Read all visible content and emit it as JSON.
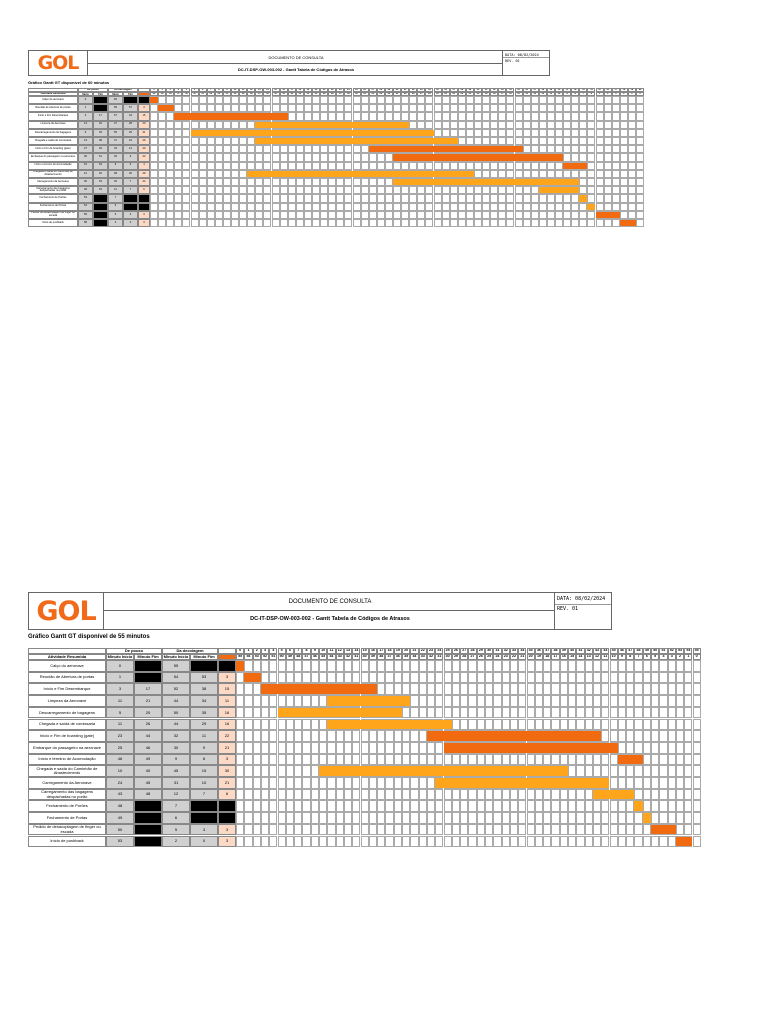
{
  "header": {
    "logo": "GOL",
    "doc_label": "DOCUMENTO DE CONSULTA",
    "doc_title": "DC-IT-DSP-OW-003-002 - Gantt Tabela de Códigos de Atrasos",
    "date": "DATA: 08/02/2024",
    "rev": "REV. 01"
  },
  "sheets": [
    {
      "title": "Gráfico Gantt GT disponível de 60 minutos",
      "total": 60,
      "rows": [
        {
          "activity": "Calço do aeronave",
          "pi": "0",
          "pf": "",
          "ci": "60",
          "cf": "",
          "d": ""
        },
        {
          "activity": "Reunião de Abertura de portas",
          "pi": "1",
          "pf": "",
          "ci": "59",
          "cf": "57",
          "d": "3"
        },
        {
          "activity": "Início e Fim Desembarque",
          "pi": "3",
          "pf": "17",
          "ci": "57",
          "cf": "43",
          "d": "15"
        },
        {
          "activity": "Limpeza da Aeronave",
          "pi": "13",
          "pf": "32",
          "ci": "47",
          "cf": "28",
          "d": "20"
        },
        {
          "activity": "Descarregamento de bagagens",
          "pi": "5",
          "pf": "35",
          "ci": "55",
          "cf": "25",
          "d": "31"
        },
        {
          "activity": "Chegada e saída de comissaria",
          "pi": "13",
          "pf": "38",
          "ci": "47",
          "cf": "22",
          "d": "26"
        },
        {
          "activity": "Início e Fim de boarding (gate)",
          "pi": "27",
          "pf": "46",
          "ci": "33",
          "cf": "14",
          "d": "20"
        },
        {
          "activity": "Embarque do passageiro na aeronave",
          "pi": "30",
          "pf": "51",
          "ci": "30",
          "cf": "9",
          "d": "22"
        },
        {
          "activity": "Início e término de Acomodação",
          "pi": "51",
          "pf": "54",
          "ci": "9",
          "cf": "6",
          "d": "4"
        },
        {
          "activity": "Chegada e saída do Caminhão de Abastecimento",
          "pi": "12",
          "pf": "40",
          "ci": "48",
          "cf": "20",
          "d": "29"
        },
        {
          "activity": "Carregamento da Aeronave",
          "pi": "30",
          "pf": "53",
          "ci": "30",
          "cf": "7",
          "d": "24"
        },
        {
          "activity": "Carregamento das bagagens despachadas no porão",
          "pi": "48",
          "pf": "53",
          "ci": "12",
          "cf": "7",
          "d": "6"
        },
        {
          "activity": "Fechamento de Porões",
          "pi": "53",
          "pf": "",
          "ci": "7",
          "cf": "",
          "d": ""
        },
        {
          "activity": "Fechamento de Portas",
          "pi": "54",
          "pf": "",
          "ci": "6",
          "cf": "",
          "d": ""
        },
        {
          "activity": "Pedido de desacoplagem de finger ou escada",
          "pi": "55",
          "pf": "",
          "ci": "5",
          "cf": "3",
          "d": "3"
        },
        {
          "activity": "Início de pushback",
          "pi": "58",
          "pf": "",
          "ci": "2",
          "cf": "0",
          "d": "3"
        }
      ],
      "bars": [
        [
          0,
          1,
          "dark"
        ],
        [
          1,
          3,
          "dark"
        ],
        [
          3,
          17,
          "dark"
        ],
        [
          13,
          32,
          "light"
        ],
        [
          5,
          35,
          "light"
        ],
        [
          13,
          38,
          "light"
        ],
        [
          27,
          46,
          "dark"
        ],
        [
          30,
          51,
          "dark"
        ],
        [
          51,
          54,
          "dark"
        ],
        [
          12,
          40,
          "light"
        ],
        [
          30,
          53,
          "light"
        ],
        [
          48,
          53,
          "light"
        ],
        [
          53,
          54,
          "light"
        ],
        [
          54,
          55,
          "light"
        ],
        [
          55,
          58,
          "dark"
        ],
        [
          58,
          60,
          "dark"
        ]
      ]
    },
    {
      "title": "Gráfico Gantt GT disponível de 55 minutos",
      "total": 55,
      "rows": [
        {
          "activity": "Calço do aeronave",
          "pi": "0",
          "pf": "",
          "ci": "55",
          "cf": "",
          "d": ""
        },
        {
          "activity": "Reunião de Abertura de portas",
          "pi": "1",
          "pf": "",
          "ci": "54",
          "cf": "53",
          "d": "3"
        },
        {
          "activity": "Início e Fim Desembarque",
          "pi": "3",
          "pf": "17",
          "ci": "52",
          "cf": "38",
          "d": "15"
        },
        {
          "activity": "Limpeza da Aeronave",
          "pi": "11",
          "pf": "21",
          "ci": "44",
          "cf": "34",
          "d": "11"
        },
        {
          "activity": "Descarregamento de bagagens",
          "pi": "5",
          "pf": "20",
          "ci": "50",
          "cf": "35",
          "d": "16"
        },
        {
          "activity": "Chegada e saída de comissaria",
          "pi": "11",
          "pf": "26",
          "ci": "44",
          "cf": "29",
          "d": "16"
        },
        {
          "activity": "Início e Fim de boarding (gate)",
          "pi": "23",
          "pf": "44",
          "ci": "32",
          "cf": "11",
          "d": "22"
        },
        {
          "activity": "Embarque do passageiro na aeronave",
          "pi": "25",
          "pf": "46",
          "ci": "30",
          "cf": "9",
          "d": "21"
        },
        {
          "activity": "Início e término de Acomodação",
          "pi": "46",
          "pf": "49",
          "ci": "9",
          "cf": "6",
          "d": "3"
        },
        {
          "activity": "Chegada e saída do Caminhão de Abastecimento",
          "pi": "10",
          "pf": "40",
          "ci": "45",
          "cf": "15",
          "d": "30"
        },
        {
          "activity": "Carregamento da Aeronave",
          "pi": "24",
          "pf": "45",
          "ci": "31",
          "cf": "10",
          "d": "21"
        },
        {
          "activity": "Carregamento das bagagens despachadas no porão",
          "pi": "43",
          "pf": "48",
          "ci": "12",
          "cf": "7",
          "d": "6"
        },
        {
          "activity": "Fechamento de Porões",
          "pi": "48",
          "pf": "",
          "ci": "7",
          "cf": "",
          "d": ""
        },
        {
          "activity": "Fechamento de Portas",
          "pi": "49",
          "pf": "",
          "ci": "6",
          "cf": "",
          "d": ""
        },
        {
          "activity": "Pedido de desacoplagem de finger ou escada",
          "pi": "50",
          "pf": "",
          "ci": "5",
          "cf": "3",
          "d": "3"
        },
        {
          "activity": "Início de pushback",
          "pi": "53",
          "pf": "",
          "ci": "2",
          "cf": "0",
          "d": "3"
        }
      ],
      "bars": [
        [
          0,
          1,
          "dark"
        ],
        [
          1,
          3,
          "dark"
        ],
        [
          3,
          17,
          "dark"
        ],
        [
          11,
          21,
          "light"
        ],
        [
          5,
          20,
          "light"
        ],
        [
          11,
          26,
          "light"
        ],
        [
          23,
          44,
          "dark"
        ],
        [
          25,
          46,
          "dark"
        ],
        [
          46,
          49,
          "dark"
        ],
        [
          10,
          40,
          "light"
        ],
        [
          24,
          45,
          "light"
        ],
        [
          43,
          48,
          "light"
        ],
        [
          48,
          49,
          "light"
        ],
        [
          49,
          50,
          "light"
        ],
        [
          50,
          53,
          "dark"
        ],
        [
          53,
          55,
          "dark"
        ]
      ]
    }
  ],
  "table_headers": {
    "activity": "Atividade Resumida",
    "group_pouso": "De pouso",
    "group_dec": "Da decolagem",
    "pi": "Minuto Início",
    "pf": "Minuto Fim",
    "ci": "Minuto Início",
    "cf": "Minuto Fim"
  },
  "colors": {
    "dark": "#f26a0f",
    "light": "#ffa51c",
    "black": "#000000",
    "grey": "#d0d0d0",
    "pink": "#fbd9c5",
    "brand": "#f06a1a"
  }
}
